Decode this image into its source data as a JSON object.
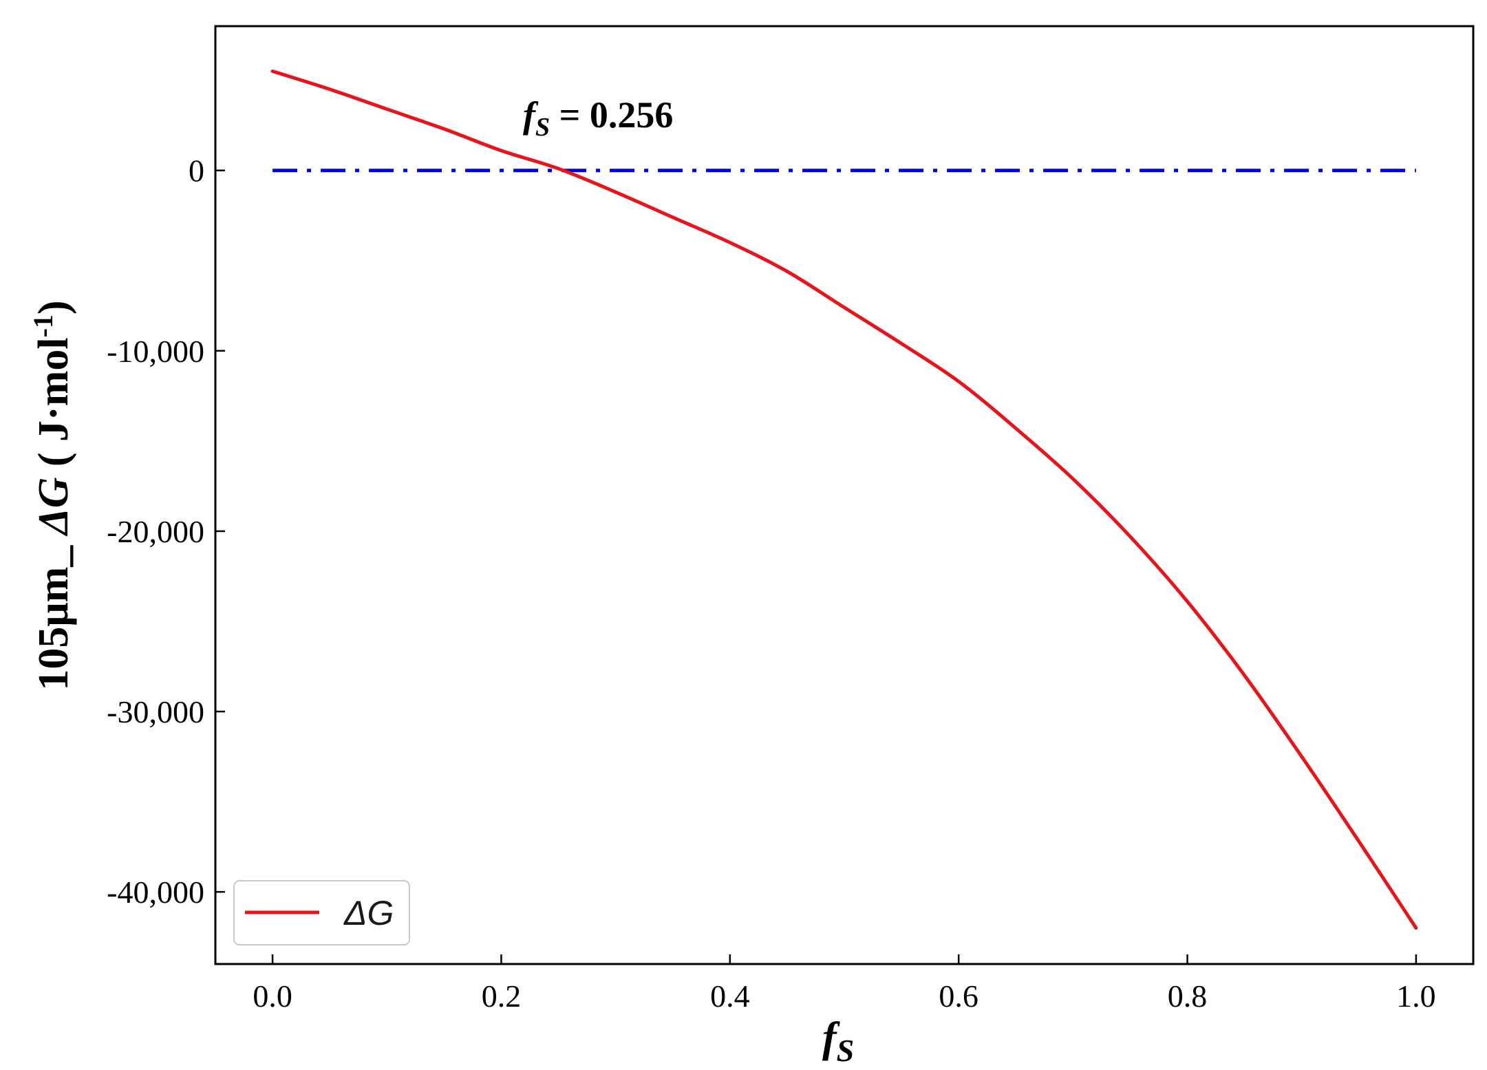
{
  "chart_data": {
    "type": "line",
    "xlabel": {
      "main": "f",
      "sub": "S"
    },
    "ylabel": {
      "prefix": "105μm_ ",
      "symbol": "ΔG",
      "unit_open": " ( J·mol",
      "unit_sup": "-1",
      "unit_close": ")"
    },
    "xlim": [
      -0.05,
      1.05
    ],
    "ylim": [
      -44000,
      8000
    ],
    "x_ticks": [
      0.0,
      0.2,
      0.4,
      0.6,
      0.8,
      1.0
    ],
    "x_tick_labels": [
      "0.0",
      "0.2",
      "0.4",
      "0.6",
      "0.8",
      "1.0"
    ],
    "y_ticks": [
      0,
      -10000,
      -20000,
      -30000,
      -40000
    ],
    "y_tick_labels": [
      "0",
      "-10,000",
      "-20,000",
      "-30,000",
      "-40,000"
    ],
    "grid": false,
    "legend_position": "bottom-left",
    "series": [
      {
        "name": "ΔG",
        "color": "#e8141c",
        "style": "solid",
        "x": [
          0.0,
          0.05,
          0.1,
          0.15,
          0.2,
          0.25,
          0.3,
          0.35,
          0.4,
          0.45,
          0.5,
          0.55,
          0.6,
          0.65,
          0.7,
          0.75,
          0.8,
          0.85,
          0.9,
          0.95,
          1.0
        ],
        "y": [
          5500,
          4500,
          3400,
          2300,
          1100,
          100,
          -1200,
          -2600,
          -4000,
          -5600,
          -7600,
          -9600,
          -11700,
          -14300,
          -17100,
          -20300,
          -23900,
          -28000,
          -32500,
          -37200,
          -42000
        ]
      }
    ],
    "reference_line": {
      "y": 0,
      "x_range": [
        0.0,
        1.0
      ],
      "color": "#0000dd",
      "style": "dash-dot"
    },
    "annotation": {
      "main": "f",
      "sub": "S",
      "rest": " = 0.256",
      "x": 0.256,
      "y": 0
    }
  }
}
